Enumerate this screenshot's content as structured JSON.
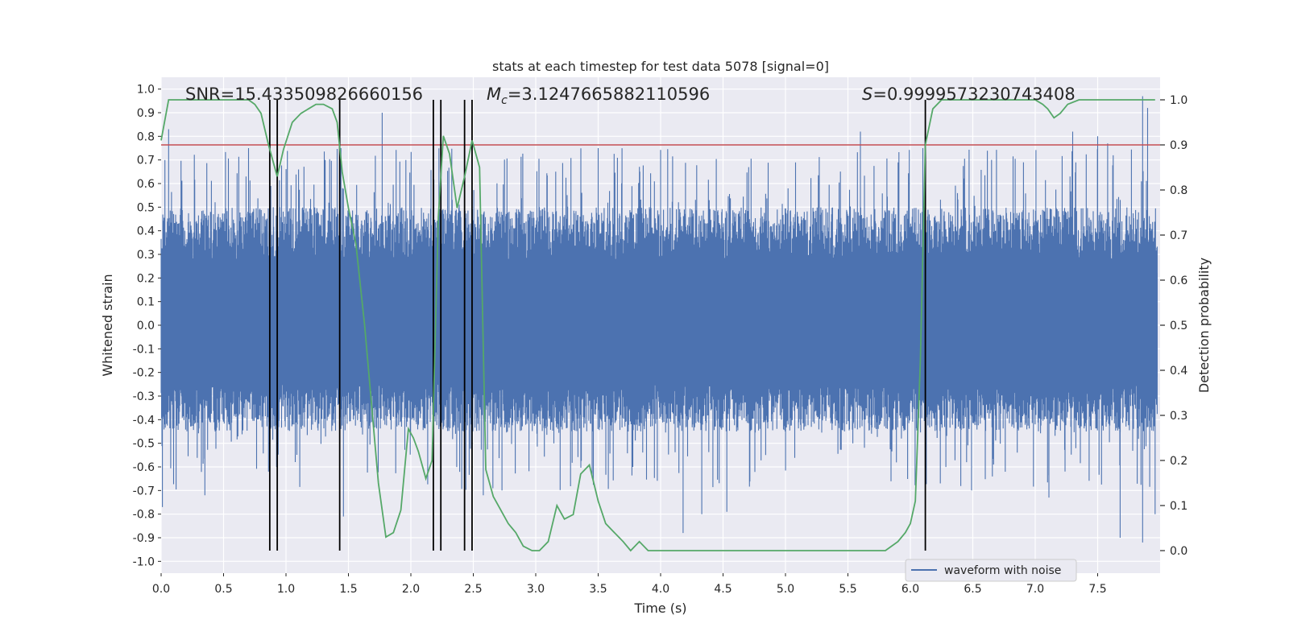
{
  "chart_data": {
    "type": "line",
    "title": "stats at each timestep for test data 5078 [signal=0]",
    "xlabel": "Time (s)",
    "ylabel": "Whitened strain",
    "y2label": "Detection probability",
    "xlim": [
      0.0,
      8.0
    ],
    "ylim": [
      -1.05,
      1.05
    ],
    "y2lim": [
      -0.05,
      1.05
    ],
    "xticks": [
      "0.0",
      "0.5",
      "1.0",
      "1.5",
      "2.0",
      "2.5",
      "3.0",
      "3.5",
      "4.0",
      "4.5",
      "5.0",
      "5.5",
      "6.0",
      "6.5",
      "7.0",
      "7.5"
    ],
    "yticks": [
      "-1.0",
      "-0.9",
      "-0.8",
      "-0.7",
      "-0.6",
      "-0.5",
      "-0.4",
      "-0.3",
      "-0.2",
      "-0.1",
      "0.0",
      "0.1",
      "0.2",
      "0.3",
      "0.4",
      "0.5",
      "0.6",
      "0.7",
      "0.8",
      "0.9",
      "1.0"
    ],
    "y2ticks": [
      "0.0",
      "0.1",
      "0.2",
      "0.3",
      "0.4",
      "0.5",
      "0.6",
      "0.7",
      "0.8",
      "0.9",
      "1.0"
    ],
    "grid": true,
    "legend_position": "lower-right",
    "annotations": {
      "snr": "SNR=15.433509826660156",
      "mc_symbol": "M",
      "mc_sub": "c",
      "mc_value": "=3.1247665882110596",
      "s_symbol": "S",
      "s_value": "=0.9999573230743408"
    },
    "threshold": 0.9,
    "vertical_lines": [
      0.87,
      0.93,
      1.43,
      2.18,
      2.24,
      2.43,
      2.49,
      6.12
    ],
    "series": [
      {
        "name": "waveform with noise",
        "axis": "left",
        "style": "dense-noise",
        "band": [
          -0.45,
          0.5
        ],
        "peaks_top": [
          [
            0.03,
            0.7
          ],
          [
            0.06,
            0.83
          ],
          [
            0.68,
            0.63
          ],
          [
            0.7,
            0.75
          ],
          [
            1.44,
            0.75
          ],
          [
            1.77,
            0.9
          ],
          [
            1.96,
            0.7
          ],
          [
            3.16,
            0.65
          ],
          [
            3.5,
            0.75
          ],
          [
            5.6,
            0.82
          ],
          [
            6.1,
            0.75
          ],
          [
            7.3,
            0.82
          ],
          [
            7.5,
            0.8
          ],
          [
            7.58,
            0.77
          ],
          [
            7.86,
            0.97
          ],
          [
            7.9,
            0.92
          ]
        ],
        "peaks_bottom": [
          [
            0.01,
            -0.77
          ],
          [
            0.35,
            -0.72
          ],
          [
            0.86,
            -0.62
          ],
          [
            1.46,
            -0.81
          ],
          [
            2.58,
            -0.72
          ],
          [
            2.73,
            -0.7
          ],
          [
            4.18,
            -0.88
          ],
          [
            4.33,
            -0.8
          ],
          [
            4.53,
            -0.79
          ],
          [
            6.24,
            -0.67
          ],
          [
            6.49,
            -0.7
          ],
          [
            7.11,
            -0.73
          ],
          [
            7.68,
            -0.9
          ],
          [
            7.86,
            -0.92
          ],
          [
            7.96,
            -0.8
          ]
        ]
      },
      {
        "name": "detection probability",
        "axis": "right",
        "x": [
          0.0,
          0.06,
          0.12,
          0.2,
          0.3,
          0.4,
          0.5,
          0.6,
          0.7,
          0.75,
          0.8,
          0.86,
          0.93,
          0.98,
          1.05,
          1.12,
          1.18,
          1.24,
          1.3,
          1.37,
          1.41,
          1.45,
          1.5,
          1.56,
          1.63,
          1.68,
          1.74,
          1.8,
          1.86,
          1.92,
          1.98,
          2.02,
          2.06,
          2.12,
          2.17,
          2.22,
          2.26,
          2.31,
          2.37,
          2.43,
          2.49,
          2.55,
          2.6,
          2.66,
          2.72,
          2.78,
          2.84,
          2.9,
          2.97,
          3.03,
          3.1,
          3.17,
          3.23,
          3.3,
          3.36,
          3.43,
          3.5,
          3.56,
          3.63,
          3.7,
          3.76,
          3.83,
          3.9,
          3.96,
          4.03,
          4.1,
          4.2,
          4.3,
          4.4,
          4.5,
          4.6,
          4.7,
          4.8,
          4.9,
          5.0,
          5.1,
          5.2,
          5.25,
          5.3,
          5.4,
          5.5,
          5.6,
          5.65,
          5.7,
          5.75,
          5.8,
          5.85,
          5.9,
          5.96,
          6.0,
          6.04,
          6.08,
          6.12,
          6.18,
          6.25,
          6.3,
          6.4,
          6.5,
          6.6,
          6.7,
          6.8,
          6.9,
          7.0,
          7.06,
          7.1,
          7.15,
          7.2,
          7.26,
          7.35,
          7.45,
          7.6,
          7.7,
          7.8,
          7.9,
          7.96
        ],
        "y": [
          0.91,
          1.0,
          1.0,
          1.0,
          1.0,
          1.0,
          1.0,
          1.0,
          1.0,
          0.99,
          0.97,
          0.9,
          0.83,
          0.89,
          0.95,
          0.97,
          0.98,
          0.99,
          0.99,
          0.98,
          0.95,
          0.84,
          0.76,
          0.68,
          0.5,
          0.34,
          0.15,
          0.03,
          0.04,
          0.09,
          0.27,
          0.25,
          0.22,
          0.16,
          0.2,
          0.74,
          0.92,
          0.88,
          0.76,
          0.83,
          0.91,
          0.85,
          0.18,
          0.12,
          0.09,
          0.06,
          0.04,
          0.01,
          0.0,
          0.0,
          0.02,
          0.1,
          0.07,
          0.08,
          0.17,
          0.19,
          0.11,
          0.06,
          0.04,
          0.02,
          0.0,
          0.02,
          0.0,
          0.0,
          0.0,
          0.0,
          0.0,
          0.0,
          0.0,
          0.0,
          0.0,
          0.0,
          0.0,
          0.0,
          0.0,
          0.0,
          0.0,
          0.0,
          0.0,
          0.0,
          0.0,
          0.0,
          0.0,
          0.0,
          0.0,
          0.0,
          0.01,
          0.02,
          0.04,
          0.06,
          0.11,
          0.42,
          0.9,
          0.98,
          1.0,
          1.0,
          1.0,
          1.0,
          1.0,
          1.0,
          1.0,
          1.0,
          1.0,
          0.99,
          0.98,
          0.96,
          0.97,
          0.99,
          1.0,
          1.0,
          1.0,
          1.0,
          1.0,
          1.0,
          1.0
        ]
      }
    ]
  },
  "colors": {
    "background": "#ffffff",
    "plot_bg": "#eaeaf2",
    "grid": "#ffffff",
    "waveform": "#4c72b0",
    "probability": "#55a868",
    "threshold": "#c44e52",
    "vlines": "#000000",
    "text": "#262626"
  }
}
